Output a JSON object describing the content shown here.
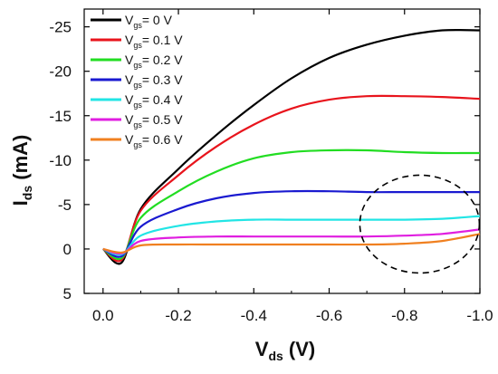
{
  "chart_data": {
    "type": "line",
    "xlabel": {
      "main": "V",
      "sub": "ds",
      "unit": " (V)"
    },
    "ylabel": {
      "main": "I",
      "sub": "ds",
      "unit": " (mA)"
    },
    "xlim": [
      0.05,
      -1.0
    ],
    "ylim": [
      5,
      -27
    ],
    "x_ticks": [
      0.0,
      -0.2,
      -0.4,
      -0.6,
      -0.8,
      -1.0
    ],
    "x_tick_labels": [
      "0.0",
      "-0.2",
      "-0.4",
      "-0.6",
      "-0.8",
      "-1.0"
    ],
    "y_ticks": [
      5,
      0,
      -5,
      -10,
      -15,
      -20,
      -25
    ],
    "y_tick_labels": [
      "5",
      "0",
      "-5",
      "-10",
      "-15",
      "-20",
      "-25"
    ],
    "legend": {
      "position": "top-left",
      "prefix": "V",
      "sub": "gs"
    },
    "series": [
      {
        "name": "= 0 V",
        "color": "#000000",
        "x": [
          -0.05,
          0.0,
          -0.1,
          -0.2,
          -0.3,
          -0.4,
          -0.5,
          -0.6,
          -0.7,
          -0.8,
          -0.9,
          -1.0
        ],
        "y": [
          1.5,
          0.0,
          -4.5,
          -9.0,
          -12.8,
          -16.2,
          -19.2,
          -21.5,
          -23.0,
          -24.0,
          -24.6,
          -24.6
        ]
      },
      {
        "name": "= 0.1 V",
        "color": "#e8141c",
        "x": [
          -0.05,
          0.0,
          -0.1,
          -0.2,
          -0.3,
          -0.4,
          -0.5,
          -0.6,
          -0.7,
          -0.8,
          -0.9,
          -1.0
        ],
        "y": [
          1.2,
          0.0,
          -4.3,
          -8.3,
          -11.5,
          -14.0,
          -15.8,
          -16.8,
          -17.2,
          -17.2,
          -17.1,
          -16.9
        ]
      },
      {
        "name": "= 0.2 V",
        "color": "#22dd22",
        "x": [
          -0.05,
          0.0,
          -0.1,
          -0.2,
          -0.3,
          -0.4,
          -0.5,
          -0.6,
          -0.7,
          -0.8,
          -0.9,
          -1.0
        ],
        "y": [
          1.0,
          0.0,
          -3.5,
          -6.5,
          -8.7,
          -10.2,
          -10.9,
          -11.1,
          -11.1,
          -10.9,
          -10.8,
          -10.8
        ]
      },
      {
        "name": "= 0.3 V",
        "color": "#1a1ad0",
        "x": [
          -0.05,
          0.0,
          -0.1,
          -0.2,
          -0.3,
          -0.4,
          -0.5,
          -0.6,
          -0.7,
          -0.8,
          -0.9,
          -1.0
        ],
        "y": [
          0.8,
          0.0,
          -2.5,
          -4.5,
          -5.7,
          -6.3,
          -6.5,
          -6.5,
          -6.4,
          -6.4,
          -6.4,
          -6.4
        ]
      },
      {
        "name": "= 0.4 V",
        "color": "#22e5e5",
        "x": [
          -0.05,
          0.0,
          -0.1,
          -0.2,
          -0.3,
          -0.4,
          -0.5,
          -0.6,
          -0.7,
          -0.8,
          -0.9,
          -1.0
        ],
        "y": [
          0.6,
          0.0,
          -1.5,
          -2.6,
          -3.1,
          -3.3,
          -3.3,
          -3.3,
          -3.3,
          -3.3,
          -3.4,
          -3.7
        ]
      },
      {
        "name": "= 0.5 V",
        "color": "#e01ee0",
        "x": [
          -0.05,
          0.0,
          -0.1,
          -0.2,
          -0.3,
          -0.4,
          -0.5,
          -0.6,
          -0.7,
          -0.8,
          -0.9,
          -1.0
        ],
        "y": [
          0.5,
          0.0,
          -0.9,
          -1.3,
          -1.4,
          -1.4,
          -1.4,
          -1.4,
          -1.4,
          -1.5,
          -1.7,
          -2.2
        ]
      },
      {
        "name": "= 0.6 V",
        "color": "#f08020",
        "x": [
          -0.05,
          0.0,
          -0.1,
          -0.2,
          -0.3,
          -0.4,
          -0.5,
          -0.6,
          -0.7,
          -0.8,
          -0.9,
          -1.0
        ],
        "y": [
          0.4,
          0.0,
          -0.4,
          -0.5,
          -0.5,
          -0.5,
          -0.5,
          -0.5,
          -0.5,
          -0.6,
          -0.9,
          -1.7
        ]
      }
    ],
    "annotation": {
      "shape": "dashed-circle",
      "cx": -0.84,
      "cy": -2.8,
      "note": "saturation region highlighted"
    }
  }
}
